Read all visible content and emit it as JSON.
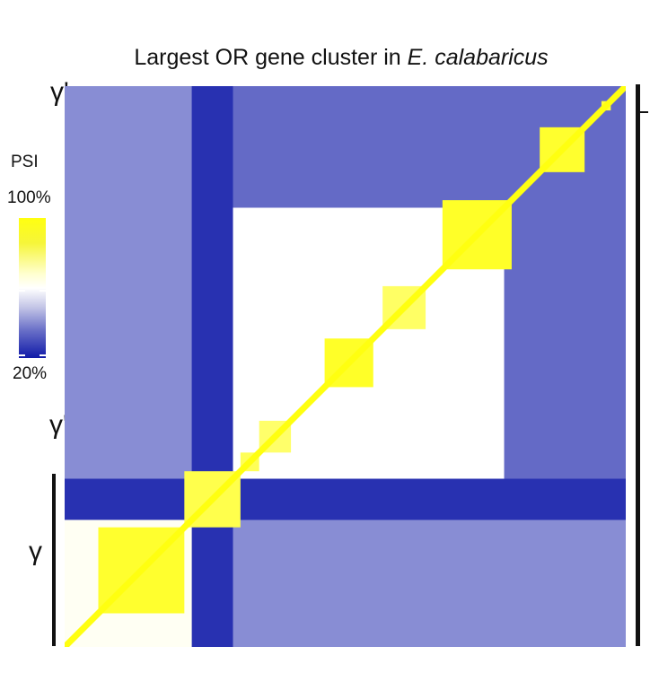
{
  "chart_data": {
    "type": "heatmap",
    "title_main": "Largest OR gene cluster in ",
    "title_species": "E. calabaricus",
    "colorbar": {
      "title": "PSI",
      "max_label": "100%",
      "min_label": "20%",
      "min": 20,
      "max": 100,
      "low_color": "#101aa8",
      "mid_color": "#ffffff",
      "high_color": "#ffff10"
    },
    "group_labels": [
      "γ'",
      "γ'",
      "γ"
    ],
    "n_genes": 300,
    "blocks": [
      {
        "start": 18,
        "end": 64,
        "psi": 95
      },
      {
        "start": 64,
        "end": 94,
        "psi": 90
      },
      {
        "start": 94,
        "end": 104,
        "psi": 88
      },
      {
        "start": 104,
        "end": 121,
        "psi": 85
      },
      {
        "start": 139,
        "end": 165,
        "psi": 96
      },
      {
        "start": 170,
        "end": 193,
        "psi": 86
      },
      {
        "start": 202,
        "end": 239,
        "psi": 96
      },
      {
        "start": 254,
        "end": 278,
        "psi": 95
      },
      {
        "start": 287,
        "end": 292,
        "psi": 93
      }
    ],
    "regions": [
      {
        "r0": 0,
        "r1": 68,
        "c0": 0,
        "c1": 300,
        "psi": 40
      },
      {
        "r0": 0,
        "r1": 68,
        "c0": 0,
        "c1": 68,
        "psi": 62
      },
      {
        "r0": 68,
        "r1": 90,
        "c0": 68,
        "c1": 300,
        "psi": 32
      },
      {
        "r0": 90,
        "r1": 300,
        "c0": 90,
        "c1": 300,
        "psi": 30
      },
      {
        "r0": 72,
        "r1": 235,
        "c0": 72,
        "c1": 235,
        "psi": 60
      },
      {
        "r0": 235,
        "r1": 300,
        "c0": 90,
        "c1": 300,
        "psi": 34
      },
      {
        "r0": 0,
        "r1": 300,
        "c0": 68,
        "c1": 90,
        "psi": 24
      }
    ]
  }
}
